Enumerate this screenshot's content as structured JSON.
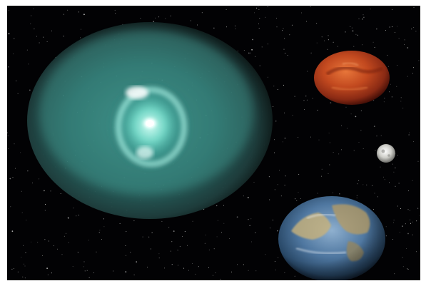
{
  "scene": {
    "background_color": "#020204",
    "frame_color": "#ffffff",
    "objects": [
      {
        "name": "planetary-nebula",
        "colors": [
          "#9fe8d8",
          "#5fb7aa",
          "#2c5b57",
          "#1a2d2c"
        ]
      },
      {
        "name": "mars-planet",
        "colors": [
          "#d9642c",
          "#a7361c",
          "#5a140c"
        ]
      },
      {
        "name": "moon",
        "colors": [
          "#f2f2ee",
          "#b8b8b2",
          "#6e6e6a"
        ]
      },
      {
        "name": "earth-planet",
        "colors": [
          "#6f93b6",
          "#3b5f86",
          "#d4c08a",
          "#1c2a3c"
        ]
      }
    ]
  }
}
